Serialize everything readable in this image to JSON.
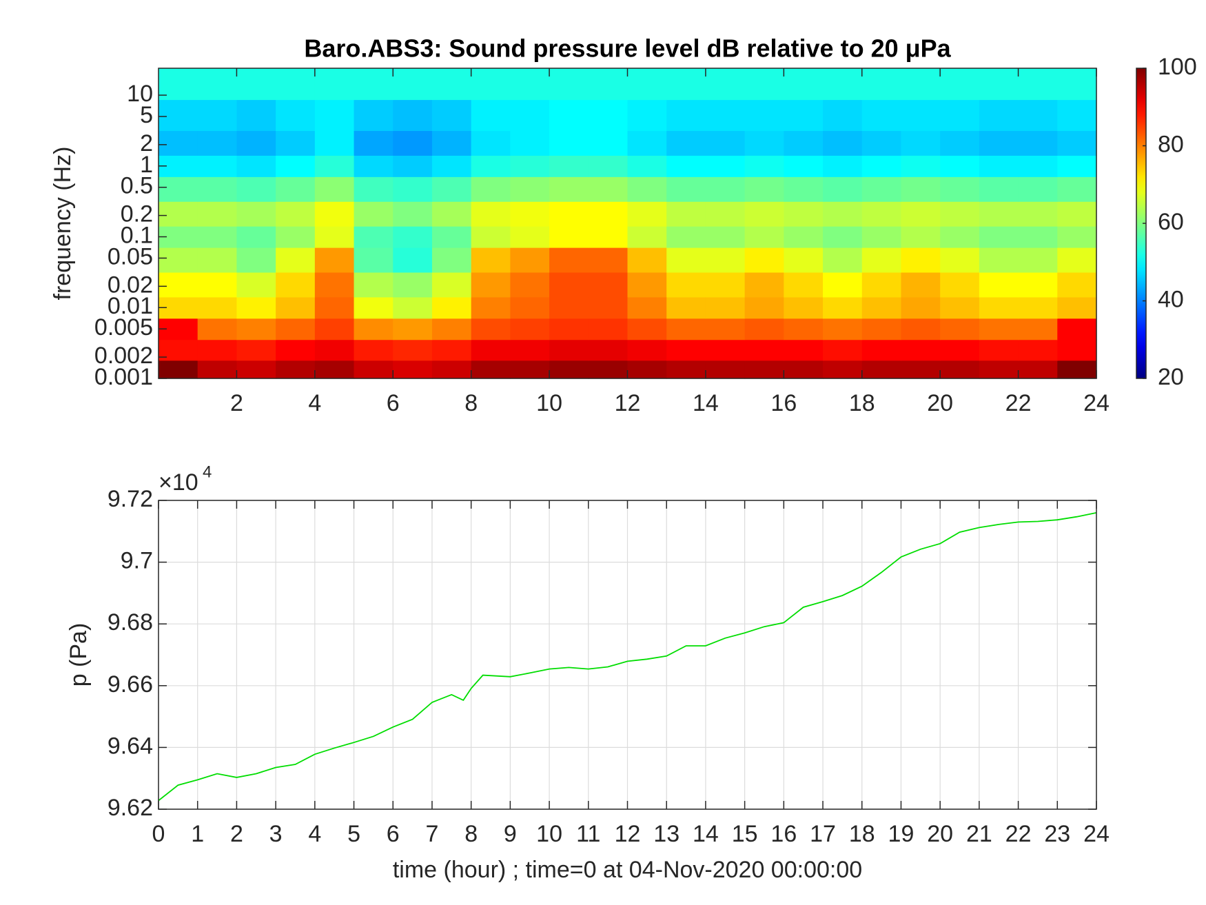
{
  "chart_data": [
    {
      "type": "heatmap",
      "title": "Baro.ABS3: Sound pressure level dB relative to 20 μPa",
      "ylabel": "frequency (Hz)",
      "x": [
        0.5,
        1.5,
        2.5,
        3.5,
        4.5,
        5.5,
        6.5,
        7.5,
        8.5,
        9.5,
        10.5,
        11.5,
        12.5,
        13.5,
        14.5,
        15.5,
        16.5,
        17.5,
        18.5,
        19.5,
        20.5,
        21.5,
        22.5,
        23.5
      ],
      "y": [
        0.0013,
        0.0025,
        0.005,
        0.01,
        0.02,
        0.05,
        0.1,
        0.2,
        0.5,
        1,
        2,
        5,
        15
      ],
      "z": [
        [
          100,
          95,
          94,
          96,
          97,
          94,
          93,
          94,
          97,
          97,
          98,
          98,
          97,
          96,
          96,
          96,
          96,
          95,
          96,
          96,
          96,
          95,
          95,
          100
        ],
        [
          89,
          89,
          88,
          90,
          91,
          88,
          87,
          88,
          91,
          91,
          92,
          92,
          91,
          90,
          90,
          90,
          90,
          89,
          90,
          90,
          90,
          89,
          89,
          90
        ],
        [
          90,
          81,
          80,
          82,
          85,
          79,
          78,
          80,
          84,
          85,
          86,
          86,
          84,
          82,
          82,
          83,
          82,
          81,
          82,
          83,
          82,
          81,
          81,
          90
        ],
        [
          73,
          73,
          71,
          75,
          82,
          69,
          66,
          71,
          80,
          82,
          84,
          84,
          80,
          75,
          75,
          77,
          75,
          73,
          75,
          77,
          75,
          73,
          73,
          75
        ],
        [
          70,
          70,
          67,
          73,
          81,
          64,
          62,
          67,
          78,
          81,
          84,
          84,
          78,
          73,
          73,
          76,
          73,
          70,
          73,
          76,
          73,
          70,
          70,
          73
        ],
        [
          64,
          64,
          60,
          68,
          78,
          57,
          53,
          60,
          75,
          78,
          82,
          82,
          75,
          68,
          68,
          71,
          68,
          64,
          68,
          71,
          68,
          64,
          64,
          68
        ],
        [
          60,
          60,
          58,
          62,
          68,
          56,
          54,
          58,
          66,
          68,
          70,
          70,
          66,
          62,
          62,
          64,
          62,
          60,
          62,
          64,
          62,
          60,
          60,
          62
        ],
        [
          64,
          64,
          63,
          65,
          69,
          62,
          60,
          63,
          68,
          69,
          70,
          70,
          68,
          65,
          65,
          66,
          65,
          64,
          65,
          66,
          65,
          64,
          64,
          65
        ],
        [
          57,
          57,
          56,
          58,
          61,
          55,
          54,
          56,
          60,
          61,
          62,
          62,
          60,
          58,
          58,
          59,
          58,
          57,
          58,
          59,
          58,
          57,
          57,
          58
        ],
        [
          49,
          49,
          48,
          50,
          53,
          47,
          46,
          48,
          52,
          53,
          54,
          54,
          52,
          50,
          50,
          51,
          50,
          49,
          50,
          51,
          50,
          49,
          49,
          50
        ],
        [
          45,
          45,
          44,
          46,
          49,
          43,
          42,
          44,
          48,
          49,
          50,
          50,
          48,
          46,
          46,
          47,
          46,
          45,
          46,
          47,
          46,
          45,
          45,
          46
        ],
        [
          47,
          47,
          46,
          48,
          49,
          46,
          45,
          46,
          49,
          49,
          50,
          50,
          49,
          48,
          48,
          48,
          48,
          47,
          48,
          48,
          48,
          47,
          47,
          48
        ],
        [
          52,
          52,
          52,
          52,
          52,
          52,
          52,
          52,
          52,
          52,
          52,
          52,
          52,
          52,
          52,
          52,
          52,
          52,
          52,
          52,
          52,
          52,
          52,
          52
        ]
      ],
      "xlim": [
        0,
        24
      ],
      "xticks": [
        2,
        4,
        6,
        8,
        10,
        12,
        14,
        16,
        18,
        20,
        22,
        24
      ],
      "ylim": [
        0.001,
        24
      ],
      "log_y": true,
      "yticks": [
        0.001,
        0.002,
        0.005,
        0.01,
        0.02,
        0.05,
        0.1,
        0.2,
        0.5,
        1,
        2,
        5,
        10
      ],
      "colormap": "jet",
      "clim": [
        20,
        100
      ],
      "colorbar_ticks": [
        20,
        40,
        60,
        80,
        100
      ]
    },
    {
      "type": "line",
      "xlabel": "time (hour) ; time=0 at 04-Nov-2020 00:00:00",
      "ylabel": "p (Pa)",
      "y_multiplier": {
        "base": "×10",
        "exponent": "4"
      },
      "x": [
        0,
        0.5,
        1,
        1.5,
        2,
        2.5,
        3,
        3.5,
        4,
        4.5,
        5,
        5.5,
        6,
        6.5,
        7,
        7.5,
        7.8,
        8,
        8.3,
        9,
        9.5,
        10,
        10.5,
        11,
        11.5,
        12,
        12.5,
        13,
        13.5,
        14,
        14.5,
        15,
        15.5,
        16,
        16.5,
        17,
        17.5,
        18,
        18.5,
        19,
        19.5,
        20,
        20.5,
        21,
        21.5,
        22,
        22.5,
        23,
        23.5,
        24
      ],
      "series": [
        {
          "color": "#00dd00",
          "values": [
            9.6228,
            9.6278,
            9.6295,
            9.6315,
            9.6303,
            9.6315,
            9.6335,
            9.6345,
            9.6378,
            9.6398,
            9.6416,
            9.6436,
            9.6466,
            9.6491,
            9.6546,
            9.6571,
            9.6553,
            9.6591,
            9.6634,
            9.6629,
            9.6641,
            9.6654,
            9.6659,
            9.6654,
            9.6661,
            9.6679,
            9.6686,
            9.6696,
            9.6729,
            9.6729,
            9.6754,
            9.6771,
            9.6791,
            9.6804,
            9.6854,
            9.6872,
            9.6892,
            9.6922,
            9.6967,
            9.7017,
            9.7042,
            9.706,
            9.7097,
            9.7112,
            9.7122,
            9.713,
            9.7132,
            9.7137,
            9.7147,
            9.716
          ]
        }
      ],
      "xlim": [
        0,
        24
      ],
      "xticks": [
        0,
        1,
        2,
        3,
        4,
        5,
        6,
        7,
        8,
        9,
        10,
        11,
        12,
        13,
        14,
        15,
        16,
        17,
        18,
        19,
        20,
        21,
        22,
        23,
        24
      ],
      "ylim": [
        9.62,
        9.72
      ],
      "yticks": [
        9.62,
        9.64,
        9.66,
        9.68,
        9.7,
        9.72
      ],
      "grid": true
    }
  ]
}
